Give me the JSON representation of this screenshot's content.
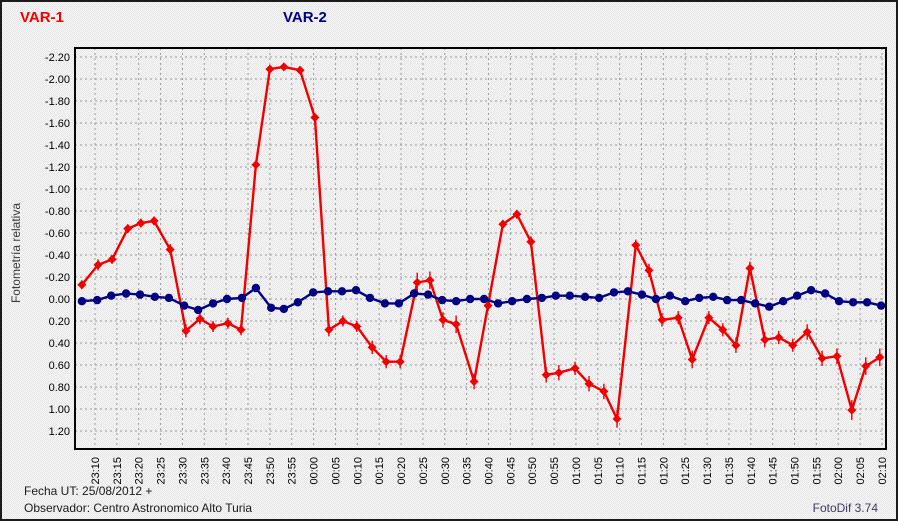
{
  "legend": [
    {
      "label": "VAR-1",
      "color": "#f00000"
    },
    {
      "label": "VAR-2",
      "color": "#000080"
    }
  ],
  "footer": {
    "fecha": "Fecha UT: 25/08/2012 +",
    "observador": "Observador: Centro Astronomico Alto Turia",
    "app": "FotoDif 3.74"
  },
  "chart_data": {
    "type": "line",
    "title": "",
    "xlabel": "",
    "ylabel": "Fotometría relativa",
    "y_inverted": true,
    "ylim_top": -2.2,
    "ylim_bottom": 1.2,
    "grid": true,
    "grid_color": "#9c9c9c",
    "frame_color": "#000000",
    "y_ticks": [
      {
        "v": -2.2,
        "label": "-2.20"
      },
      {
        "v": -2.0,
        "label": "-2.00"
      },
      {
        "v": -1.8,
        "label": "-1.80"
      },
      {
        "v": -1.6,
        "label": "-1.60"
      },
      {
        "v": -1.4,
        "label": "-1.40"
      },
      {
        "v": -1.2,
        "label": "-1.20"
      },
      {
        "v": -1.0,
        "label": "-1.00"
      },
      {
        "v": -0.8,
        "label": "-0.80"
      },
      {
        "v": -0.6,
        "label": "-0.60"
      },
      {
        "v": -0.4,
        "label": "-0.40"
      },
      {
        "v": -0.2,
        "label": "-0.20"
      },
      {
        "v": 0.0,
        "label": "0.00"
      },
      {
        "v": 0.2,
        "label": "0.20"
      },
      {
        "v": 0.4,
        "label": "0.40"
      },
      {
        "v": 0.6,
        "label": "0.60"
      },
      {
        "v": 0.8,
        "label": "0.80"
      },
      {
        "v": 1.0,
        "label": "1.00"
      },
      {
        "v": 1.2,
        "label": "1.20"
      }
    ],
    "x_ticks": [
      {
        "t": 0,
        "label": "23:10"
      },
      {
        "t": 5,
        "label": "23:15"
      },
      {
        "t": 10,
        "label": "23:20"
      },
      {
        "t": 15,
        "label": "23:25"
      },
      {
        "t": 20,
        "label": "23:30"
      },
      {
        "t": 25,
        "label": "23:35"
      },
      {
        "t": 30,
        "label": "23:40"
      },
      {
        "t": 35,
        "label": "23:45"
      },
      {
        "t": 40,
        "label": "23:50"
      },
      {
        "t": 45,
        "label": "23:55"
      },
      {
        "t": 50,
        "label": "00:00"
      },
      {
        "t": 55,
        "label": "00:05"
      },
      {
        "t": 60,
        "label": "00:10"
      },
      {
        "t": 65,
        "label": "00:15"
      },
      {
        "t": 70,
        "label": "00:20"
      },
      {
        "t": 75,
        "label": "00:25"
      },
      {
        "t": 80,
        "label": "00:30"
      },
      {
        "t": 85,
        "label": "00:35"
      },
      {
        "t": 90,
        "label": "00:40"
      },
      {
        "t": 95,
        "label": "00:45"
      },
      {
        "t": 100,
        "label": "00:50"
      },
      {
        "t": 105,
        "label": "00:55"
      },
      {
        "t": 110,
        "label": "01:00"
      },
      {
        "t": 115,
        "label": "01:05"
      },
      {
        "t": 120,
        "label": "01:10"
      },
      {
        "t": 125,
        "label": "01:15"
      },
      {
        "t": 130,
        "label": "01:20"
      },
      {
        "t": 135,
        "label": "01:25"
      },
      {
        "t": 140,
        "label": "01:30"
      },
      {
        "t": 145,
        "label": "01:35"
      },
      {
        "t": 150,
        "label": "01:40"
      },
      {
        "t": 155,
        "label": "01:45"
      },
      {
        "t": 160,
        "label": "01:50"
      },
      {
        "t": 165,
        "label": "01:55"
      },
      {
        "t": 170,
        "label": "02:00"
      },
      {
        "t": 175,
        "label": "02:05"
      },
      {
        "t": 180,
        "label": "02:10"
      }
    ],
    "series": [
      {
        "name": "VAR-1",
        "color": "#f00000",
        "marker": "diamond",
        "has_error_bars": true,
        "points_format": [
          "t_minutes_from_23:10",
          "value",
          "error"
        ],
        "points": [
          [
            -3.0,
            -0.13,
            0.04
          ],
          [
            0.7,
            -0.31,
            0.05
          ],
          [
            3.9,
            -0.36,
            0.04
          ],
          [
            7.5,
            -0.64,
            0.04
          ],
          [
            10.5,
            -0.69,
            0.04
          ],
          [
            13.5,
            -0.71,
            0.04
          ],
          [
            17.2,
            -0.45,
            0.05
          ],
          [
            20.8,
            0.29,
            0.06
          ],
          [
            24.0,
            0.18,
            0.05
          ],
          [
            27.0,
            0.25,
            0.05
          ],
          [
            30.4,
            0.22,
            0.05
          ],
          [
            33.4,
            0.28,
            0.05
          ],
          [
            36.8,
            -1.22,
            0.03
          ],
          [
            40.0,
            -2.09,
            0.02
          ],
          [
            43.2,
            -2.11,
            0.02
          ],
          [
            46.9,
            -2.08,
            0.02
          ],
          [
            50.3,
            -1.65,
            0.03
          ],
          [
            53.5,
            0.28,
            0.06
          ],
          [
            56.7,
            0.2,
            0.05
          ],
          [
            59.9,
            0.25,
            0.05
          ],
          [
            63.4,
            0.44,
            0.06
          ],
          [
            66.6,
            0.57,
            0.06
          ],
          [
            69.8,
            0.57,
            0.06
          ],
          [
            73.7,
            -0.15,
            0.09
          ],
          [
            76.6,
            -0.17,
            0.08
          ],
          [
            79.6,
            0.19,
            0.07
          ],
          [
            82.6,
            0.23,
            0.08
          ],
          [
            86.7,
            0.75,
            0.07
          ],
          [
            89.9,
            0.06,
            0.05
          ],
          [
            93.3,
            -0.68,
            0.04
          ],
          [
            96.5,
            -0.77,
            0.04
          ],
          [
            99.7,
            -0.52,
            0.05
          ],
          [
            103.2,
            0.69,
            0.07
          ],
          [
            106.1,
            0.67,
            0.07
          ],
          [
            109.8,
            0.63,
            0.06
          ],
          [
            113.0,
            0.77,
            0.07
          ],
          [
            116.4,
            0.84,
            0.07
          ],
          [
            119.4,
            1.09,
            0.08
          ],
          [
            123.7,
            -0.49,
            0.05
          ],
          [
            126.7,
            -0.26,
            0.06
          ],
          [
            129.7,
            0.19,
            0.06
          ],
          [
            133.4,
            0.17,
            0.06
          ],
          [
            136.6,
            0.55,
            0.08
          ],
          [
            140.4,
            0.17,
            0.06
          ],
          [
            143.6,
            0.28,
            0.06
          ],
          [
            146.6,
            0.42,
            0.07
          ],
          [
            149.8,
            -0.28,
            0.06
          ],
          [
            153.2,
            0.37,
            0.07
          ],
          [
            156.4,
            0.35,
            0.06
          ],
          [
            159.6,
            0.42,
            0.06
          ],
          [
            162.9,
            0.3,
            0.07
          ],
          [
            166.3,
            0.54,
            0.07
          ],
          [
            169.7,
            0.52,
            0.07
          ],
          [
            173.1,
            1.01,
            0.09
          ],
          [
            176.3,
            0.61,
            0.08
          ],
          [
            179.5,
            0.53,
            0.08
          ]
        ]
      },
      {
        "name": "VAR-2",
        "color": "#000080",
        "marker": "circle",
        "has_error_bars": false,
        "points_format": [
          "t_minutes_from_23:10",
          "value"
        ],
        "points": [
          [
            -3.0,
            0.02
          ],
          [
            0.5,
            0.01
          ],
          [
            3.7,
            -0.03
          ],
          [
            7.1,
            -0.05
          ],
          [
            10.3,
            -0.04
          ],
          [
            13.7,
            -0.02
          ],
          [
            16.9,
            -0.01
          ],
          [
            20.4,
            0.06
          ],
          [
            23.6,
            0.1
          ],
          [
            27.0,
            0.04
          ],
          [
            30.2,
            0.0
          ],
          [
            33.6,
            -0.01
          ],
          [
            36.8,
            -0.1
          ],
          [
            40.3,
            0.08
          ],
          [
            43.2,
            0.09
          ],
          [
            46.4,
            0.03
          ],
          [
            49.9,
            -0.06
          ],
          [
            53.3,
            -0.07
          ],
          [
            56.5,
            -0.07
          ],
          [
            59.7,
            -0.08
          ],
          [
            62.9,
            -0.01
          ],
          [
            66.3,
            0.04
          ],
          [
            69.5,
            0.04
          ],
          [
            73.0,
            -0.05
          ],
          [
            76.2,
            -0.04
          ],
          [
            79.4,
            0.01
          ],
          [
            82.6,
            0.02
          ],
          [
            85.8,
            0.0
          ],
          [
            89.0,
            0.0
          ],
          [
            92.2,
            0.04
          ],
          [
            95.4,
            0.02
          ],
          [
            98.8,
            0.0
          ],
          [
            102.2,
            -0.01
          ],
          [
            105.4,
            -0.03
          ],
          [
            108.6,
            -0.03
          ],
          [
            112.1,
            -0.02
          ],
          [
            115.3,
            -0.01
          ],
          [
            118.7,
            -0.06
          ],
          [
            121.9,
            -0.07
          ],
          [
            125.1,
            -0.04
          ],
          [
            128.3,
            0.0
          ],
          [
            131.5,
            -0.03
          ],
          [
            135.0,
            0.02
          ],
          [
            138.2,
            -0.01
          ],
          [
            141.4,
            -0.02
          ],
          [
            144.6,
            0.01
          ],
          [
            147.8,
            0.01
          ],
          [
            151.0,
            0.04
          ],
          [
            154.2,
            0.07
          ],
          [
            157.4,
            0.02
          ],
          [
            160.6,
            -0.03
          ],
          [
            163.8,
            -0.08
          ],
          [
            167.0,
            -0.05
          ],
          [
            170.2,
            0.02
          ],
          [
            173.4,
            0.03
          ],
          [
            176.6,
            0.03
          ],
          [
            179.8,
            0.06
          ]
        ]
      }
    ]
  }
}
